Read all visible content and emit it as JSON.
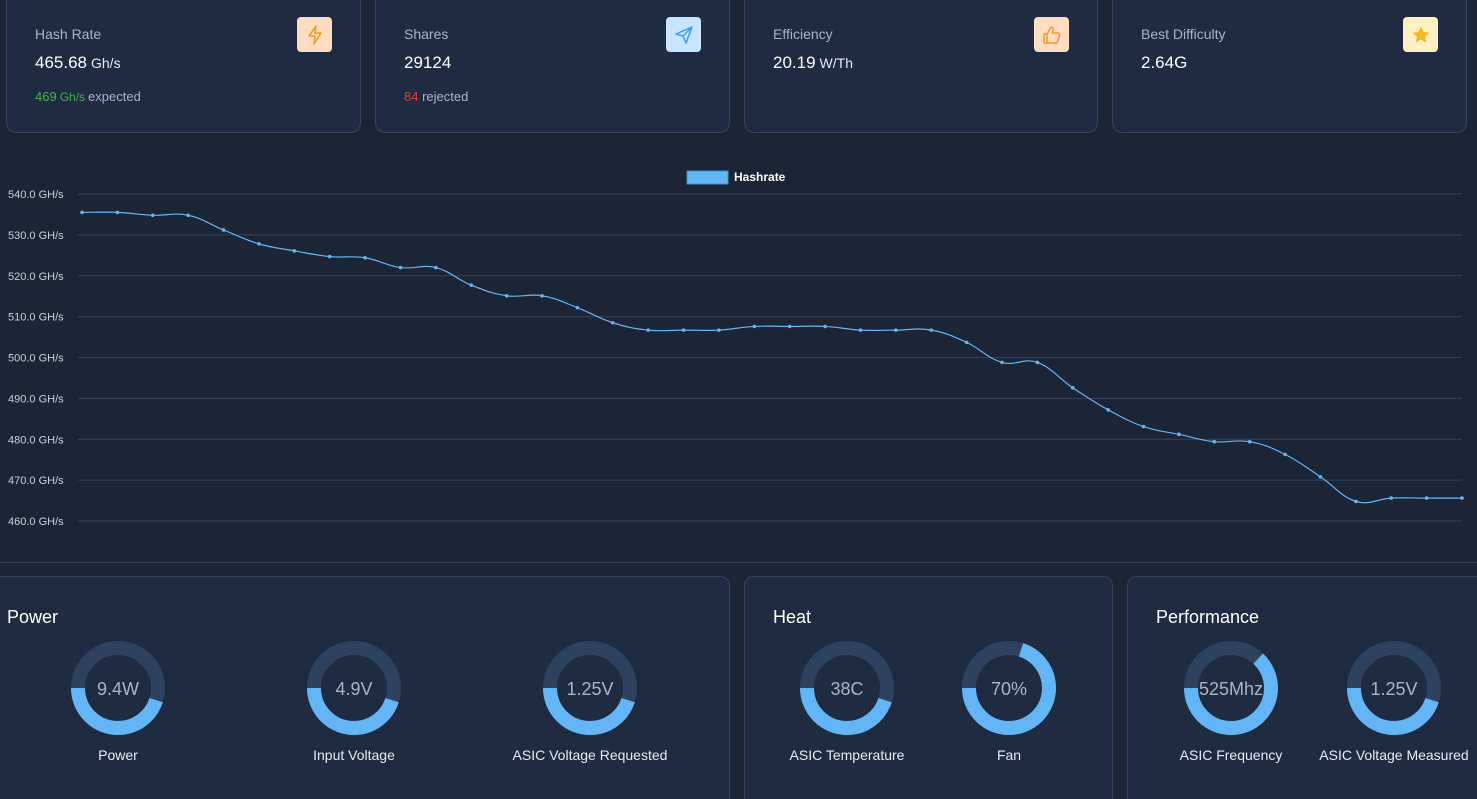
{
  "stats": [
    {
      "label": "Hash Rate",
      "value": "465.68",
      "unit": "Gh/s",
      "sub_value": "469",
      "sub_value_unit": "Gh/s",
      "sub_text": "expected",
      "sub_color": "green",
      "icon": "lightning-icon",
      "icon_bg": "#ffdcc2",
      "icon_color": "#f3992b"
    },
    {
      "label": "Shares",
      "value": "29124",
      "unit": "",
      "sub_value": "84",
      "sub_value_unit": "",
      "sub_text": "rejected",
      "sub_color": "red",
      "icon": "send-icon",
      "icon_bg": "#c9e4ff",
      "icon_color": "#3b9bf5"
    },
    {
      "label": "Efficiency",
      "value": "20.19",
      "unit": "W/Th",
      "icon": "thumbs-up-icon",
      "icon_bg": "#ffdcc2",
      "icon_color": "#f3992b"
    },
    {
      "label": "Best Difficulty",
      "value": "2.64G",
      "unit": "",
      "icon": "star-icon",
      "icon_bg": "#fff0c4",
      "icon_color": "#f5b727"
    }
  ],
  "chart_data": {
    "type": "line",
    "legend": "Hashrate",
    "legend_position": "top-center",
    "series_color": "#64b5f6",
    "ylim": [
      460,
      540
    ],
    "yticks": [
      "540.0 GH/s",
      "530.0 GH/s",
      "520.0 GH/s",
      "510.0 GH/s",
      "500.0 GH/s",
      "490.0 GH/s",
      "480.0 GH/s",
      "470.0 GH/s",
      "460.0 GH/s"
    ],
    "grid": true,
    "values": [
      535.5,
      535.5,
      534.8,
      534.8,
      531.2,
      527.8,
      526.1,
      524.7,
      524.4,
      522.0,
      522.0,
      517.7,
      515.1,
      515.1,
      512.2,
      508.5,
      506.7,
      506.7,
      506.7,
      507.6,
      507.6,
      507.6,
      506.7,
      506.7,
      506.7,
      503.7,
      498.8,
      498.8,
      492.6,
      487.2,
      483.1,
      481.2,
      479.4,
      479.4,
      476.3,
      470.8,
      464.8,
      465.6,
      465.6,
      465.6
    ]
  },
  "panels": [
    {
      "title": "Power",
      "gauges": [
        {
          "value": "9.4W",
          "label": "Power",
          "fraction": 0.45
        },
        {
          "value": "4.9V",
          "label": "Input Voltage",
          "fraction": 0.45
        },
        {
          "value": "1.25V",
          "label": "ASIC Voltage Requested",
          "fraction": 0.45
        }
      ]
    },
    {
      "title": "Heat",
      "gauges": [
        {
          "value": "38C",
          "label": "ASIC Temperature",
          "fraction": 0.45
        },
        {
          "value": "70%",
          "label": "Fan",
          "fraction": 0.7
        }
      ]
    },
    {
      "title": "Performance",
      "gauges": [
        {
          "value": "525Mhz",
          "label": "ASIC Frequency",
          "fraction": 0.63
        },
        {
          "value": "1.25V",
          "label": "ASIC Voltage Measured",
          "fraction": 0.45
        }
      ]
    }
  ],
  "colors": {
    "gauge_fill": "#64b5f6",
    "gauge_track": "#2e4260"
  }
}
